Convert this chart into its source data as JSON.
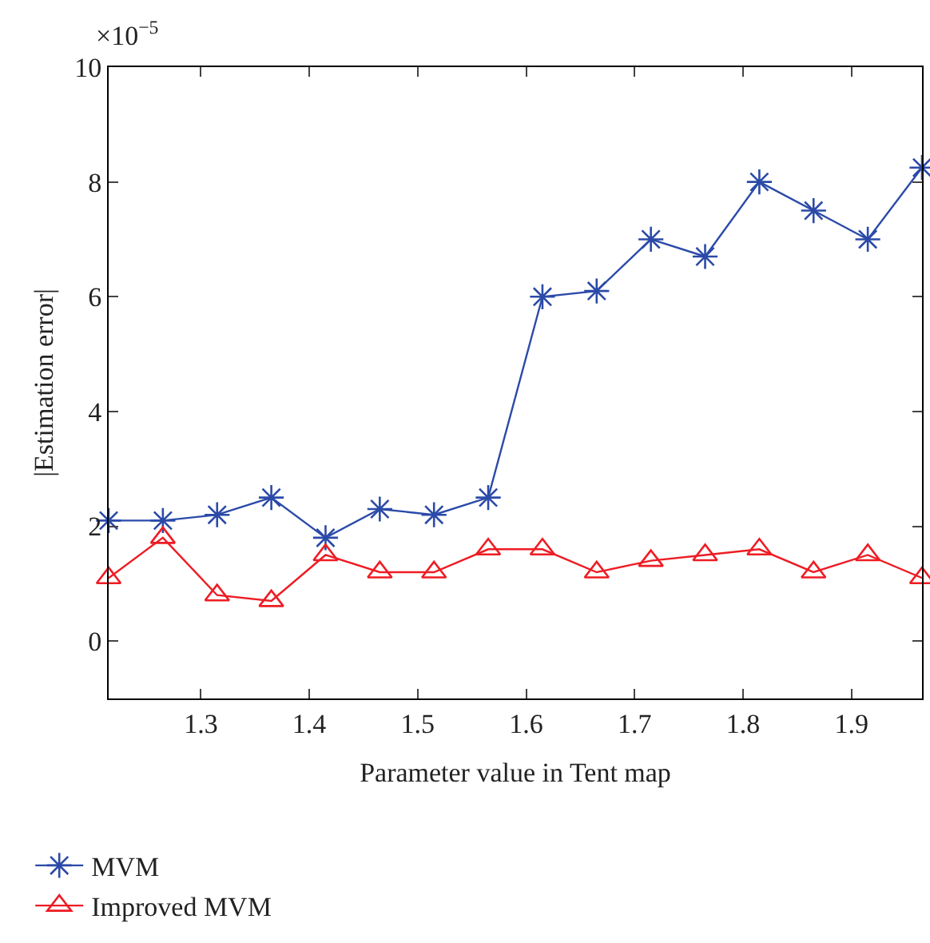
{
  "chart_data": {
    "type": "line",
    "xlabel": "Parameter value in Tent map",
    "ylabel": "|Estimation error|",
    "annotations": [
      "×10$^{−5}$"
    ],
    "x": [
      1.215,
      1.265,
      1.315,
      1.365,
      1.415,
      1.465,
      1.515,
      1.565,
      1.615,
      1.665,
      1.715,
      1.765,
      1.815,
      1.865,
      1.915,
      1.965
    ],
    "series": [
      {
        "name": "MVM",
        "color": "#2b4aa8",
        "marker": "cross",
        "values": [
          2.1,
          2.1,
          2.2,
          2.5,
          1.8,
          2.3,
          2.2,
          2.5,
          6.0,
          6.1,
          7.0,
          6.7,
          8.0,
          7.5,
          7.0,
          8.25
        ]
      },
      {
        "name": "Improved MVM",
        "color": "#ee1c24",
        "marker": "triangle",
        "values": [
          1.1,
          1.8,
          0.8,
          0.7,
          1.5,
          1.2,
          1.2,
          1.6,
          1.6,
          1.2,
          1.4,
          1.5,
          1.6,
          1.2,
          1.5,
          1.1
        ]
      }
    ],
    "xlim": [
      1.215,
      1.965
    ],
    "xticks": [
      1.3,
      1.4,
      1.5,
      1.6,
      1.7,
      1.8,
      1.9
    ],
    "ylim": [
      -1,
      10
    ],
    "yticks": [
      0,
      2,
      4,
      6,
      8,
      10
    ],
    "legend": "bottom left",
    "line_style": "solid"
  }
}
